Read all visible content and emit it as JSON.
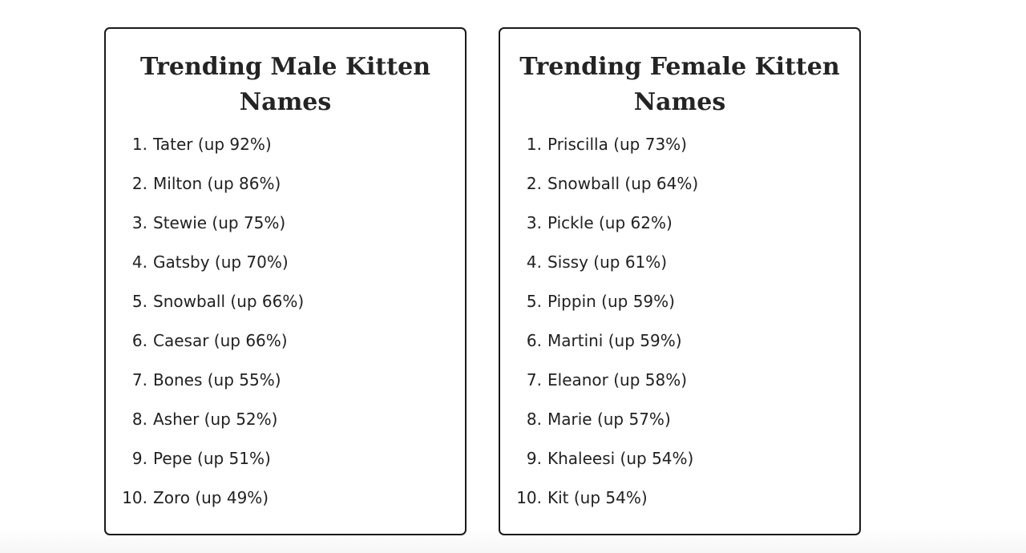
{
  "page": {
    "cards": [
      {
        "title_lines": [
          "Trending Male Kitten",
          "Names"
        ],
        "items": [
          {
            "rank": "1.",
            "label": "Tater (up 92%)"
          },
          {
            "rank": "2.",
            "label": "Milton (up 86%)"
          },
          {
            "rank": "3.",
            "label": "Stewie (up 75%)"
          },
          {
            "rank": "4.",
            "label": "Gatsby (up 70%)"
          },
          {
            "rank": "5.",
            "label": "Snowball (up 66%)"
          },
          {
            "rank": "6.",
            "label": "Caesar (up 66%)"
          },
          {
            "rank": "7.",
            "label": "Bones (up 55%)"
          },
          {
            "rank": "8.",
            "label": "Asher (up 52%)"
          },
          {
            "rank": "9.",
            "label": "Pepe (up 51%)"
          },
          {
            "rank": "10.",
            "label": "Zoro (up 49%)"
          }
        ]
      },
      {
        "title_lines": [
          "Trending Female Kitten",
          "Names"
        ],
        "items": [
          {
            "rank": "1.",
            "label": "Priscilla (up 73%)"
          },
          {
            "rank": "2.",
            "label": "Snowball (up 64%)"
          },
          {
            "rank": "3.",
            "label": "Pickle (up 62%)"
          },
          {
            "rank": "4.",
            "label": "Sissy (up 61%)"
          },
          {
            "rank": "5.",
            "label": "Pippin (up 59%)"
          },
          {
            "rank": "6.",
            "label": "Martini (up 59%)"
          },
          {
            "rank": "7.",
            "label": "Eleanor (up 58%)"
          },
          {
            "rank": "8.",
            "label": "Marie (up 57%)"
          },
          {
            "rank": "9.",
            "label": "Khaleesi (up 54%)"
          },
          {
            "rank": "10.",
            "label": "Kit (up 54%)"
          }
        ]
      }
    ],
    "colors": {
      "border": "#1a1a1a",
      "text": "#212121",
      "background": "#ffffff"
    }
  }
}
